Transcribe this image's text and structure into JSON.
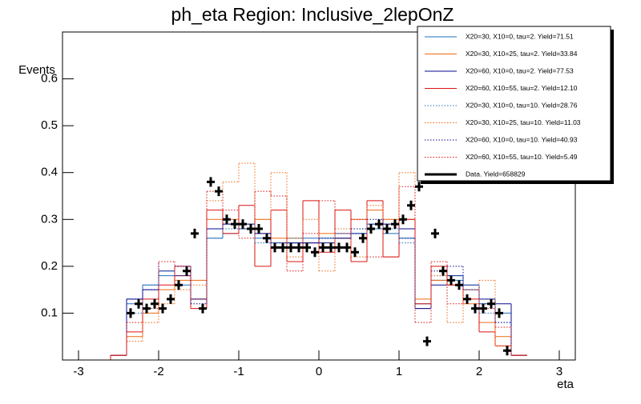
{
  "chart_data": {
    "type": "histogram",
    "title": "ph_eta Region: Inclusive_2lepOnZ",
    "x_label": "eta",
    "y_label": "Events",
    "xlim": [
      -3.2,
      3.2
    ],
    "ylim": [
      0,
      0.7
    ],
    "xticks": [
      -3,
      -2,
      -1,
      0,
      1,
      2,
      3
    ],
    "yticks": [
      0.1,
      0.2,
      0.3,
      0.4,
      0.5,
      0.6
    ],
    "legend": "top-right",
    "bins": [
      -2.6,
      -2.4,
      -2.2,
      -2.0,
      -1.8,
      -1.6,
      -1.4,
      -1.2,
      -1.0,
      -0.8,
      -0.6,
      -0.4,
      -0.2,
      0,
      0.2,
      0.4,
      0.6,
      0.8,
      1.0,
      1.2,
      1.4,
      1.6,
      1.8,
      2.0,
      2.2,
      2.4,
      2.6
    ],
    "series": [
      {
        "name": "X20=30, X10=0, tau=2. Yield=71.51",
        "color": "#1f6fbf",
        "style": "solid",
        "values": [
          0.01,
          0.12,
          0.16,
          0.18,
          0.16,
          0.13,
          0.26,
          0.27,
          0.28,
          0.26,
          0.25,
          0.25,
          0.26,
          0.26,
          0.27,
          0.27,
          0.28,
          0.27,
          0.26,
          0.12,
          0.17,
          0.17,
          0.15,
          0.12,
          0.1,
          0.01
        ]
      },
      {
        "name": "X20=30, X10=25, tau=2. Yield=33.84",
        "color": "#ee6a10",
        "style": "solid",
        "values": [
          0.01,
          0.05,
          0.1,
          0.15,
          0.17,
          0.17,
          0.3,
          0.3,
          0.29,
          0.3,
          0.26,
          0.26,
          0.25,
          0.27,
          0.26,
          0.3,
          0.32,
          0.3,
          0.3,
          0.13,
          0.17,
          0.16,
          0.12,
          0.08,
          0.05,
          0.01
        ]
      },
      {
        "name": "X20=60, X10=0, tau=2. Yield=77.53",
        "color": "#0a0a8c",
        "style": "solid",
        "values": [
          0.01,
          0.13,
          0.15,
          0.19,
          0.18,
          0.13,
          0.28,
          0.29,
          0.29,
          0.27,
          0.24,
          0.25,
          0.25,
          0.25,
          0.26,
          0.27,
          0.29,
          0.29,
          0.28,
          0.11,
          0.16,
          0.18,
          0.16,
          0.13,
          0.12,
          0.01
        ]
      },
      {
        "name": "X20=60, X10=55, tau=2. Yield=12.10",
        "color": "#dd1111",
        "style": "solid",
        "values": [
          0.01,
          0.06,
          0.13,
          0.16,
          0.2,
          0.11,
          0.32,
          0.27,
          0.33,
          0.2,
          0.32,
          0.21,
          0.34,
          0.23,
          0.32,
          0.21,
          0.34,
          0.22,
          0.3,
          0.12,
          0.2,
          0.16,
          0.13,
          0.06,
          0.03,
          0.01
        ]
      },
      {
        "name": "X20=30, X10=0, tau=10. Yield=28.76",
        "color": "#1f6fbf",
        "style": "dotted",
        "values": [
          0.01,
          0.1,
          0.16,
          0.19,
          0.18,
          0.13,
          0.26,
          0.28,
          0.29,
          0.25,
          0.24,
          0.26,
          0.25,
          0.26,
          0.28,
          0.27,
          0.29,
          0.28,
          0.25,
          0.11,
          0.18,
          0.18,
          0.16,
          0.1,
          0.08,
          0.01
        ]
      },
      {
        "name": "X20=30, X10=25, tau=10. Yield=11.03",
        "color": "#ee6a10",
        "style": "dotted",
        "values": [
          0.01,
          0.04,
          0.08,
          0.12,
          0.15,
          0.16,
          0.34,
          0.38,
          0.42,
          0.3,
          0.4,
          0.22,
          0.3,
          0.19,
          0.28,
          0.22,
          0.33,
          0.3,
          0.4,
          0.11,
          0.18,
          0.08,
          0.15,
          0.17,
          0.03,
          0.01
        ]
      },
      {
        "name": "X20=60, X10=0, tau=10. Yield=40.93",
        "color": "#0a0a8c",
        "style": "dotted",
        "values": [
          0.01,
          0.13,
          0.15,
          0.21,
          0.2,
          0.12,
          0.28,
          0.29,
          0.28,
          0.27,
          0.25,
          0.24,
          0.25,
          0.26,
          0.26,
          0.28,
          0.3,
          0.29,
          0.26,
          0.11,
          0.19,
          0.2,
          0.15,
          0.12,
          0.08,
          0.01
        ]
      },
      {
        "name": "X20=60, X10=55, tau=10. Yield=5.49",
        "color": "#dd1111",
        "style": "dotted",
        "values": [
          0.01,
          0.08,
          0.11,
          0.21,
          0.18,
          0.13,
          0.36,
          0.32,
          0.26,
          0.36,
          0.35,
          0.19,
          0.27,
          0.34,
          0.27,
          0.3,
          0.22,
          0.22,
          0.37,
          0.08,
          0.21,
          0.12,
          0.15,
          0.11,
          0.07,
          0.01
        ]
      }
    ],
    "data": {
      "name": "Data. Yield=658829",
      "color": "#000000",
      "x": [
        -2.35,
        -2.25,
        -2.15,
        -2.05,
        -1.95,
        -1.85,
        -1.75,
        -1.65,
        -1.55,
        -1.45,
        -1.35,
        -1.25,
        -1.15,
        -1.05,
        -0.95,
        -0.85,
        -0.75,
        -0.65,
        -0.55,
        -0.45,
        -0.35,
        -0.25,
        -0.15,
        -0.05,
        0.05,
        0.15,
        0.25,
        0.35,
        0.45,
        0.55,
        0.65,
        0.75,
        0.85,
        0.95,
        1.05,
        1.15,
        1.25,
        1.35,
        1.45,
        1.55,
        1.65,
        1.75,
        1.85,
        1.95,
        2.05,
        2.15,
        2.25,
        2.35
      ],
      "values": [
        0.1,
        0.12,
        0.11,
        0.12,
        0.11,
        0.13,
        0.16,
        0.19,
        0.27,
        0.11,
        0.38,
        0.36,
        0.3,
        0.29,
        0.29,
        0.28,
        0.28,
        0.26,
        0.24,
        0.24,
        0.24,
        0.24,
        0.24,
        0.23,
        0.24,
        0.24,
        0.24,
        0.24,
        0.23,
        0.26,
        0.28,
        0.29,
        0.28,
        0.29,
        0.3,
        0.33,
        0.37,
        0.04,
        0.27,
        0.19,
        0.17,
        0.16,
        0.13,
        0.11,
        0.11,
        0.12,
        0.1,
        0.02
      ]
    }
  }
}
